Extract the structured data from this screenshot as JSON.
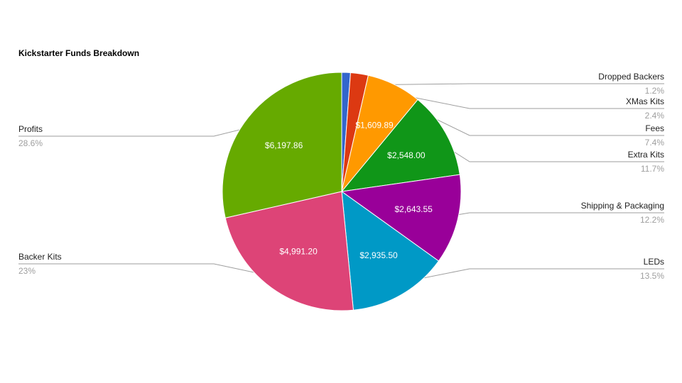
{
  "chart_data": {
    "type": "pie",
    "title": "Kickstarter Funds Breakdown",
    "slices": [
      {
        "label": "Dropped Backers",
        "value": 256.0,
        "value_label": "",
        "percent_label": "1.2%",
        "color": "#3366cc"
      },
      {
        "label": "XMas Kits",
        "value": 520.0,
        "value_label": "",
        "percent_label": "2.4%",
        "color": "#dc3912"
      },
      {
        "label": "Fees",
        "value": 1609.89,
        "value_label": "$1,609.89",
        "percent_label": "7.4%",
        "color": "#ff9900"
      },
      {
        "label": "Extra Kits",
        "value": 2548.0,
        "value_label": "$2,548.00",
        "percent_label": "11.7%",
        "color": "#109618"
      },
      {
        "label": "Shipping & Packaging",
        "value": 2643.55,
        "value_label": "$2,643.55",
        "percent_label": "12.2%",
        "color": "#990099"
      },
      {
        "label": "LEDs",
        "value": 2935.5,
        "value_label": "$2,935.50",
        "percent_label": "13.5%",
        "color": "#0099c6"
      },
      {
        "label": "Backer Kits",
        "value": 4991.2,
        "value_label": "$4,991.20",
        "percent_label": "23%",
        "color": "#dd4477"
      },
      {
        "label": "Profits",
        "value": 6197.86,
        "value_label": "$6,197.86",
        "percent_label": "28.6%",
        "color": "#66aa00"
      }
    ],
    "legend": "labeled",
    "leader_line_color": "#9e9e9e"
  }
}
